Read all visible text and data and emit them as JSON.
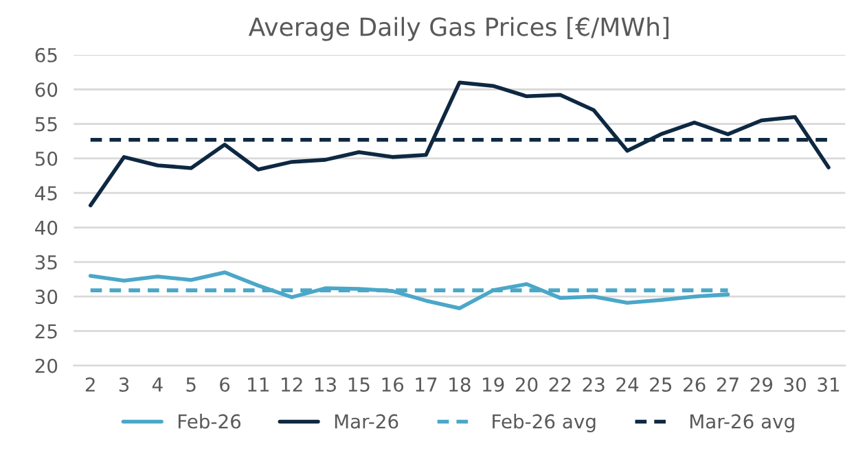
{
  "chart_data": {
    "type": "line",
    "title": "Average Daily Gas Prices [€/MWh]",
    "categories": [
      "2",
      "3",
      "4",
      "5",
      "6",
      "11",
      "12",
      "13",
      "15",
      "16",
      "17",
      "18",
      "19",
      "20",
      "22",
      "23",
      "24",
      "25",
      "26",
      "27",
      "29",
      "30",
      "31"
    ],
    "series": [
      {
        "name": "Feb-26",
        "color": "#4ba7c8",
        "line_style": "solid",
        "values": [
          33.0,
          32.3,
          32.9,
          32.4,
          33.5,
          31.6,
          29.9,
          31.2,
          31.1,
          30.8,
          29.4,
          28.3,
          30.9,
          31.8,
          29.8,
          30.0,
          29.1,
          29.5,
          30.0,
          30.3,
          null,
          null,
          null
        ]
      },
      {
        "name": "Mar-26",
        "color": "#0e2841",
        "line_style": "solid",
        "values": [
          43.2,
          50.2,
          49.0,
          48.6,
          52.0,
          48.4,
          49.5,
          49.8,
          50.9,
          50.2,
          50.5,
          61.0,
          60.5,
          59.0,
          59.2,
          57.0,
          51.1,
          53.5,
          55.2,
          53.5,
          55.5,
          56.0,
          48.7
        ]
      },
      {
        "name": "Feb-26 avg",
        "color": "#4ba7c8",
        "line_style": "dashed",
        "values": [
          30.9,
          30.9,
          30.9,
          30.9,
          30.9,
          30.9,
          30.9,
          30.9,
          30.9,
          30.9,
          30.9,
          30.9,
          30.9,
          30.9,
          30.9,
          30.9,
          30.9,
          30.9,
          30.9,
          30.9,
          null,
          null,
          null
        ]
      },
      {
        "name": "Mar-26 avg",
        "color": "#0e2841",
        "line_style": "dashed",
        "values": [
          52.7,
          52.7,
          52.7,
          52.7,
          52.7,
          52.7,
          52.7,
          52.7,
          52.7,
          52.7,
          52.7,
          52.7,
          52.7,
          52.7,
          52.7,
          52.7,
          52.7,
          52.7,
          52.7,
          52.7,
          52.7,
          52.7,
          52.7
        ]
      }
    ],
    "ylim": [
      20,
      65
    ],
    "yticks": [
      20,
      25,
      30,
      35,
      40,
      45,
      50,
      55,
      60,
      65
    ],
    "grid": "y",
    "legend": "bottom",
    "marker": "none"
  }
}
